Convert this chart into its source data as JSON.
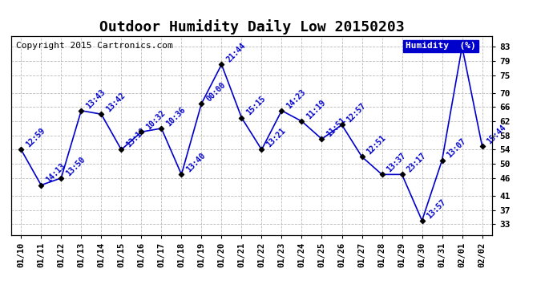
{
  "title": "Outdoor Humidity Daily Low 20150203",
  "copyright": "Copyright 2015 Cartronics.com",
  "legend_label": "Humidity  (%)",
  "dates": [
    "01/10",
    "01/11",
    "01/12",
    "01/13",
    "01/14",
    "01/15",
    "01/16",
    "01/17",
    "01/18",
    "01/19",
    "01/20",
    "01/21",
    "01/22",
    "01/23",
    "01/24",
    "01/25",
    "01/26",
    "01/27",
    "01/28",
    "01/29",
    "01/30",
    "01/31",
    "02/01",
    "02/02"
  ],
  "values": [
    54,
    44,
    46,
    65,
    64,
    54,
    59,
    60,
    47,
    67,
    78,
    63,
    54,
    65,
    62,
    57,
    61,
    52,
    47,
    47,
    34,
    51,
    83,
    55
  ],
  "annotations": [
    "12:59",
    "14:13",
    "13:50",
    "13:43",
    "13:42",
    "13:18",
    "10:32",
    "10:36",
    "13:40",
    "00:00",
    "21:44",
    "15:15",
    "13:21",
    "14:23",
    "11:19",
    "11:51",
    "12:57",
    "12:51",
    "13:37",
    "23:17",
    "13:57",
    "13:07",
    "",
    "15:44"
  ],
  "line_color": "#0000CC",
  "marker_color": "#000000",
  "background_color": "#ffffff",
  "grid_color": "#bbbbbb",
  "annotation_color": "#0000CC",
  "title_color": "#000000",
  "yticks": [
    33,
    37,
    41,
    46,
    50,
    54,
    58,
    62,
    66,
    70,
    75,
    79,
    83
  ],
  "ylim": [
    30,
    86
  ],
  "legend_bg": "#0000CC",
  "legend_text_color": "#ffffff",
  "title_fontsize": 13,
  "annotation_fontsize": 7,
  "copyright_fontsize": 8,
  "tick_fontsize": 8,
  "xtick_fontsize": 7.5
}
